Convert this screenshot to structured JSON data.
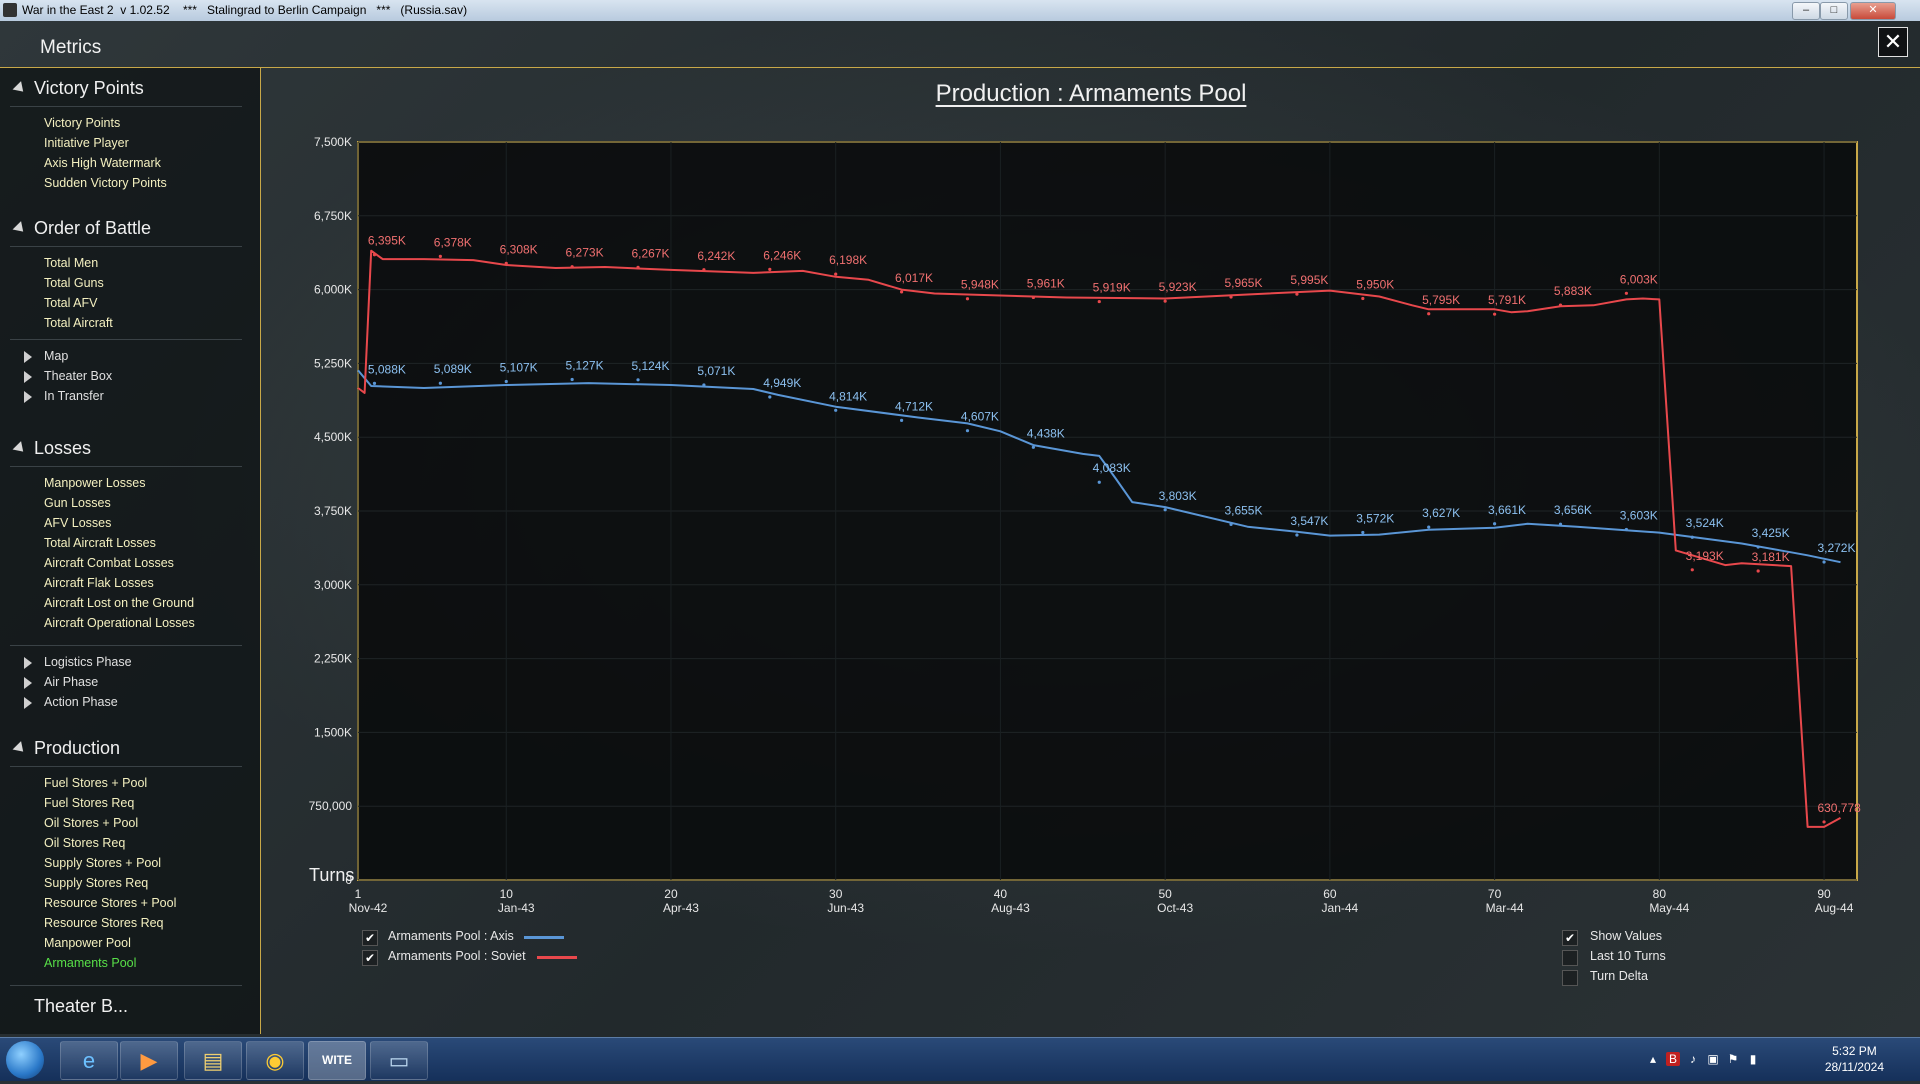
{
  "window": {
    "title": "War in the East 2  v 1.02.52    ***   Stalingrad to Berlin Campaign   ***   (Russia.sav)",
    "minimize_glyph": "–",
    "maximize_glyph": "□",
    "close_glyph": "✕"
  },
  "header": {
    "title": "Metrics",
    "close_glyph": "✕"
  },
  "sidebar": {
    "victory": {
      "title": "Victory Points",
      "items": [
        "Victory Points",
        "Initiative Player",
        "Axis High Watermark",
        "Sudden Victory Points"
      ]
    },
    "oob": {
      "title": "Order of Battle",
      "items": [
        "Total Men",
        "Total Guns",
        "Total AFV",
        "Total Aircraft"
      ],
      "subs": [
        "Map",
        "Theater Box",
        "In Transfer"
      ]
    },
    "losses": {
      "title": "Losses",
      "items": [
        "Manpower Losses",
        "Gun Losses",
        "AFV Losses",
        "Total Aircraft Losses",
        "Aircraft Combat Losses",
        "Aircraft Flak Losses",
        "Aircraft Lost on the Ground",
        "Aircraft Operational Losses"
      ],
      "subs": [
        "Logistics Phase",
        "Air Phase",
        "Action Phase"
      ]
    },
    "production": {
      "title": "Production",
      "items": [
        "Fuel Stores + Pool",
        "Fuel Stores Req",
        "Oil Stores + Pool",
        "Oil Stores Req",
        "Supply Stores + Pool",
        "Supply Stores Req",
        "Resource Stores + Pool",
        "Resource Stores Req",
        "Manpower Pool",
        "Armaments Pool"
      ],
      "active": "Armaments Pool"
    },
    "cutoff": {
      "title": "Theater B..."
    }
  },
  "chart_data": {
    "type": "line",
    "title": "Production : Armaments Pool",
    "xlabel": "Turns",
    "xlim": [
      1,
      92
    ],
    "ylim": [
      0,
      7500000
    ],
    "y_ticks": [
      {
        "v": 0,
        "label": "0"
      },
      {
        "v": 750000,
        "label": "750,000"
      },
      {
        "v": 1500000,
        "label": "1,500K"
      },
      {
        "v": 2250000,
        "label": "2,250K"
      },
      {
        "v": 3000000,
        "label": "3,000K"
      },
      {
        "v": 3750000,
        "label": "3,750K"
      },
      {
        "v": 4500000,
        "label": "4,500K"
      },
      {
        "v": 5250000,
        "label": "5,250K"
      },
      {
        "v": 6000000,
        "label": "6,000K"
      },
      {
        "v": 6750000,
        "label": "6,750K"
      },
      {
        "v": 7500000,
        "label": "7,500K"
      }
    ],
    "x_ticks": [
      {
        "turn": 1,
        "num": "1",
        "date": "Nov-42"
      },
      {
        "turn": 10,
        "num": "10",
        "date": "Jan-43"
      },
      {
        "turn": 20,
        "num": "20",
        "date": "Apr-43"
      },
      {
        "turn": 30,
        "num": "30",
        "date": "Jun-43"
      },
      {
        "turn": 40,
        "num": "40",
        "date": "Aug-43"
      },
      {
        "turn": 50,
        "num": "50",
        "date": "Oct-43"
      },
      {
        "turn": 60,
        "num": "60",
        "date": "Jan-44"
      },
      {
        "turn": 70,
        "num": "70",
        "date": "Mar-44"
      },
      {
        "turn": 80,
        "num": "80",
        "date": "May-44"
      },
      {
        "turn": 90,
        "num": "90",
        "date": "Aug-44"
      }
    ],
    "series": [
      {
        "name": "Armaments Pool : Axis",
        "color": "#5a96d6",
        "label_color": "#8cc0f0",
        "points": [
          [
            1,
            5180000
          ],
          [
            1.8,
            5020000
          ],
          [
            5,
            5000000
          ],
          [
            10,
            5030000
          ],
          [
            15,
            5050000
          ],
          [
            20,
            5030000
          ],
          [
            25,
            4990000
          ],
          [
            26.5,
            4930000
          ],
          [
            30,
            4810000
          ],
          [
            35,
            4700000
          ],
          [
            38,
            4640000
          ],
          [
            40,
            4560000
          ],
          [
            42,
            4420000
          ],
          [
            45,
            4330000
          ],
          [
            46,
            4310000
          ],
          [
            47,
            4080000
          ],
          [
            48,
            3840000
          ],
          [
            50,
            3790000
          ],
          [
            55,
            3590000
          ],
          [
            58,
            3540000
          ],
          [
            60,
            3500000
          ],
          [
            63,
            3510000
          ],
          [
            66,
            3560000
          ],
          [
            70,
            3580000
          ],
          [
            72,
            3620000
          ],
          [
            75,
            3590000
          ],
          [
            80,
            3530000
          ],
          [
            85,
            3420000
          ],
          [
            88,
            3330000
          ],
          [
            89,
            3300000
          ],
          [
            91,
            3230000
          ]
        ],
        "labels": [
          {
            "x": 1.6,
            "y": 5088000,
            "text": "5,088K"
          },
          {
            "x": 5.6,
            "y": 5089000,
            "text": "5,089K"
          },
          {
            "x": 9.6,
            "y": 5107000,
            "text": "5,107K"
          },
          {
            "x": 13.6,
            "y": 5127000,
            "text": "5,127K"
          },
          {
            "x": 17.6,
            "y": 5124000,
            "text": "5,124K"
          },
          {
            "x": 21.6,
            "y": 5071000,
            "text": "5,071K"
          },
          {
            "x": 25.6,
            "y": 4949000,
            "text": "4,949K"
          },
          {
            "x": 29.6,
            "y": 4814000,
            "text": "4,814K"
          },
          {
            "x": 33.6,
            "y": 4712000,
            "text": "4,712K"
          },
          {
            "x": 37.6,
            "y": 4607000,
            "text": "4,607K"
          },
          {
            "x": 41.6,
            "y": 4438000,
            "text": "4,438K"
          },
          {
            "x": 45.6,
            "y": 4083000,
            "text": "4,083K"
          },
          {
            "x": 49.6,
            "y": 3803000,
            "text": "3,803K"
          },
          {
            "x": 53.6,
            "y": 3655000,
            "text": "3,655K"
          },
          {
            "x": 57.6,
            "y": 3547000,
            "text": "3,547K"
          },
          {
            "x": 61.6,
            "y": 3572000,
            "text": "3,572K"
          },
          {
            "x": 65.6,
            "y": 3627000,
            "text": "3,627K"
          },
          {
            "x": 69.6,
            "y": 3661000,
            "text": "3,661K"
          },
          {
            "x": 73.6,
            "y": 3656000,
            "text": "3,656K"
          },
          {
            "x": 77.6,
            "y": 3603000,
            "text": "3,603K"
          },
          {
            "x": 81.6,
            "y": 3524000,
            "text": "3,524K"
          },
          {
            "x": 85.6,
            "y": 3425000,
            "text": "3,425K"
          },
          {
            "x": 89.6,
            "y": 3272000,
            "text": "3,272K"
          }
        ]
      },
      {
        "name": "Armaments Pool : Soviet",
        "color": "#e8484c",
        "label_color": "#f07070",
        "points": [
          [
            1,
            5000000
          ],
          [
            1.4,
            4950000
          ],
          [
            1.8,
            6395000
          ],
          [
            2.5,
            6310000
          ],
          [
            5,
            6310000
          ],
          [
            8,
            6300000
          ],
          [
            10,
            6250000
          ],
          [
            13,
            6220000
          ],
          [
            16,
            6230000
          ],
          [
            20,
            6200000
          ],
          [
            25,
            6170000
          ],
          [
            28,
            6190000
          ],
          [
            30,
            6130000
          ],
          [
            32,
            6100000
          ],
          [
            34,
            6000000
          ],
          [
            36,
            5960000
          ],
          [
            40,
            5940000
          ],
          [
            44,
            5920000
          ],
          [
            50,
            5910000
          ],
          [
            55,
            5950000
          ],
          [
            60,
            5990000
          ],
          [
            63,
            5930000
          ],
          [
            65,
            5840000
          ],
          [
            66,
            5800000
          ],
          [
            70,
            5800000
          ],
          [
            71,
            5770000
          ],
          [
            72,
            5780000
          ],
          [
            74,
            5830000
          ],
          [
            76,
            5840000
          ],
          [
            78,
            5900000
          ],
          [
            79,
            5910000
          ],
          [
            80,
            5900000
          ],
          [
            81,
            3350000
          ],
          [
            82,
            3300000
          ],
          [
            84,
            3200000
          ],
          [
            85,
            3220000
          ],
          [
            88,
            3190000
          ],
          [
            89,
            540000
          ],
          [
            90,
            540000
          ],
          [
            91,
            630778
          ]
        ],
        "labels": [
          {
            "x": 1.6,
            "y": 6395000,
            "text": "6,395K"
          },
          {
            "x": 5.6,
            "y": 6378000,
            "text": "6,378K"
          },
          {
            "x": 9.6,
            "y": 6308000,
            "text": "6,308K"
          },
          {
            "x": 13.6,
            "y": 6273000,
            "text": "6,273K"
          },
          {
            "x": 17.6,
            "y": 6267000,
            "text": "6,267K"
          },
          {
            "x": 21.6,
            "y": 6242000,
            "text": "6,242K"
          },
          {
            "x": 25.6,
            "y": 6246000,
            "text": "6,246K"
          },
          {
            "x": 29.6,
            "y": 6198000,
            "text": "6,198K"
          },
          {
            "x": 33.6,
            "y": 6017000,
            "text": "6,017K"
          },
          {
            "x": 37.6,
            "y": 5948000,
            "text": "5,948K"
          },
          {
            "x": 41.6,
            "y": 5961000,
            "text": "5,961K"
          },
          {
            "x": 45.6,
            "y": 5919000,
            "text": "5,919K"
          },
          {
            "x": 49.6,
            "y": 5923000,
            "text": "5,923K"
          },
          {
            "x": 53.6,
            "y": 5965000,
            "text": "5,965K"
          },
          {
            "x": 57.6,
            "y": 5995000,
            "text": "5,995K"
          },
          {
            "x": 61.6,
            "y": 5950000,
            "text": "5,950K"
          },
          {
            "x": 65.6,
            "y": 5795000,
            "text": "5,795K"
          },
          {
            "x": 69.6,
            "y": 5791000,
            "text": "5,791K"
          },
          {
            "x": 73.6,
            "y": 5883000,
            "text": "5,883K"
          },
          {
            "x": 77.6,
            "y": 6003000,
            "text": "6,003K"
          },
          {
            "x": 81.6,
            "y": 3193000,
            "text": "3,193K"
          },
          {
            "x": 85.6,
            "y": 3181000,
            "text": "3,181K"
          },
          {
            "x": 89.6,
            "y": 630778,
            "text": "630,778"
          }
        ]
      }
    ]
  },
  "legend": {
    "axis": {
      "label": "Armaments Pool : Axis",
      "checked": "✔",
      "color": "#5a96d6"
    },
    "soviet": {
      "label": "Armaments Pool : Soviet",
      "checked": "✔",
      "color": "#e8484c"
    }
  },
  "options": {
    "show_values": {
      "label": "Show Values",
      "checked": "✔"
    },
    "last_10": {
      "label": "Last 10 Turns",
      "checked": ""
    },
    "turn_delta": {
      "label": "Turn Delta",
      "checked": ""
    }
  },
  "taskbar": {
    "apps": [
      "ie",
      "media",
      "explorer",
      "chrome",
      "wite",
      "window"
    ],
    "wite_label": "WITE",
    "clock_time": "5:32 PM",
    "clock_date": "28/11/2024"
  },
  "colors": {
    "accent_border": "#c8a848",
    "active_item": "#58e048",
    "item_text": "#f4f0c0"
  }
}
